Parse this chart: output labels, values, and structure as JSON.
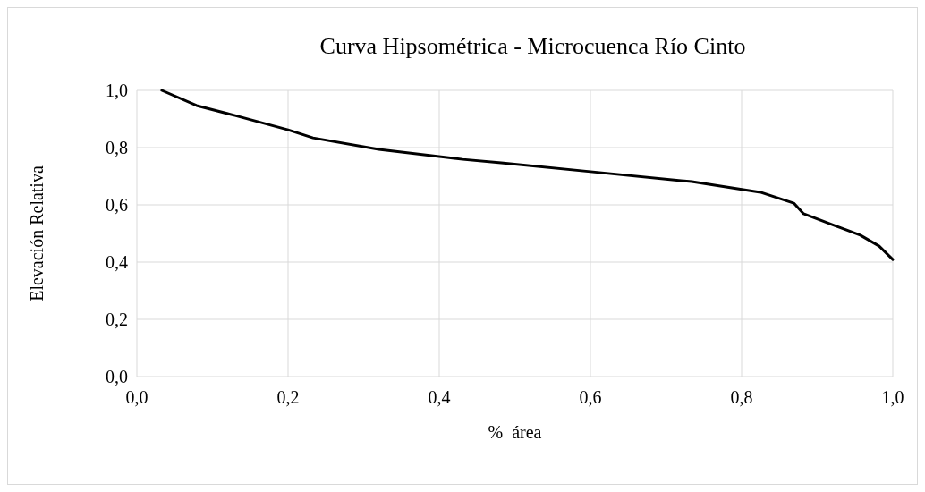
{
  "chart_data": {
    "type": "line",
    "title": "Curva Hipsométrica - Microcuenca Río Cinto",
    "xlabel": "%  área",
    "ylabel": "Elevación Relativa",
    "series": [
      {
        "color": "#000000",
        "x": [
          0.033,
          0.079,
          0.13,
          0.2,
          0.233,
          0.32,
          0.431,
          0.482,
          0.6,
          0.734,
          0.825,
          0.869,
          0.882,
          0.923,
          0.957,
          0.982,
          1.0
        ],
        "values": [
          1.0,
          0.947,
          0.912,
          0.862,
          0.834,
          0.794,
          0.759,
          0.747,
          0.716,
          0.681,
          0.644,
          0.606,
          0.569,
          0.528,
          0.494,
          0.456,
          0.409
        ]
      }
    ],
    "xlim": [
      0,
      1
    ],
    "ylim": [
      0,
      1
    ],
    "xticks": [
      {
        "value": 0,
        "label": "0,0"
      },
      {
        "value": 0.2,
        "label": "0,2"
      },
      {
        "value": 0.4,
        "label": "0,4"
      },
      {
        "value": 0.6,
        "label": "0,6"
      },
      {
        "value": 0.8,
        "label": "0,8"
      },
      {
        "value": 1,
        "label": "1,0"
      }
    ],
    "yticks": [
      {
        "value": 0,
        "label": "0,0"
      },
      {
        "value": 0.2,
        "label": "0,2"
      },
      {
        "value": 0.4,
        "label": "0,4"
      },
      {
        "value": 0.6,
        "label": "0,6"
      },
      {
        "value": 0.8,
        "label": "0,8"
      },
      {
        "value": 1,
        "label": "1,0"
      }
    ],
    "grid": true,
    "marker": "none",
    "line_style": "solid"
  }
}
